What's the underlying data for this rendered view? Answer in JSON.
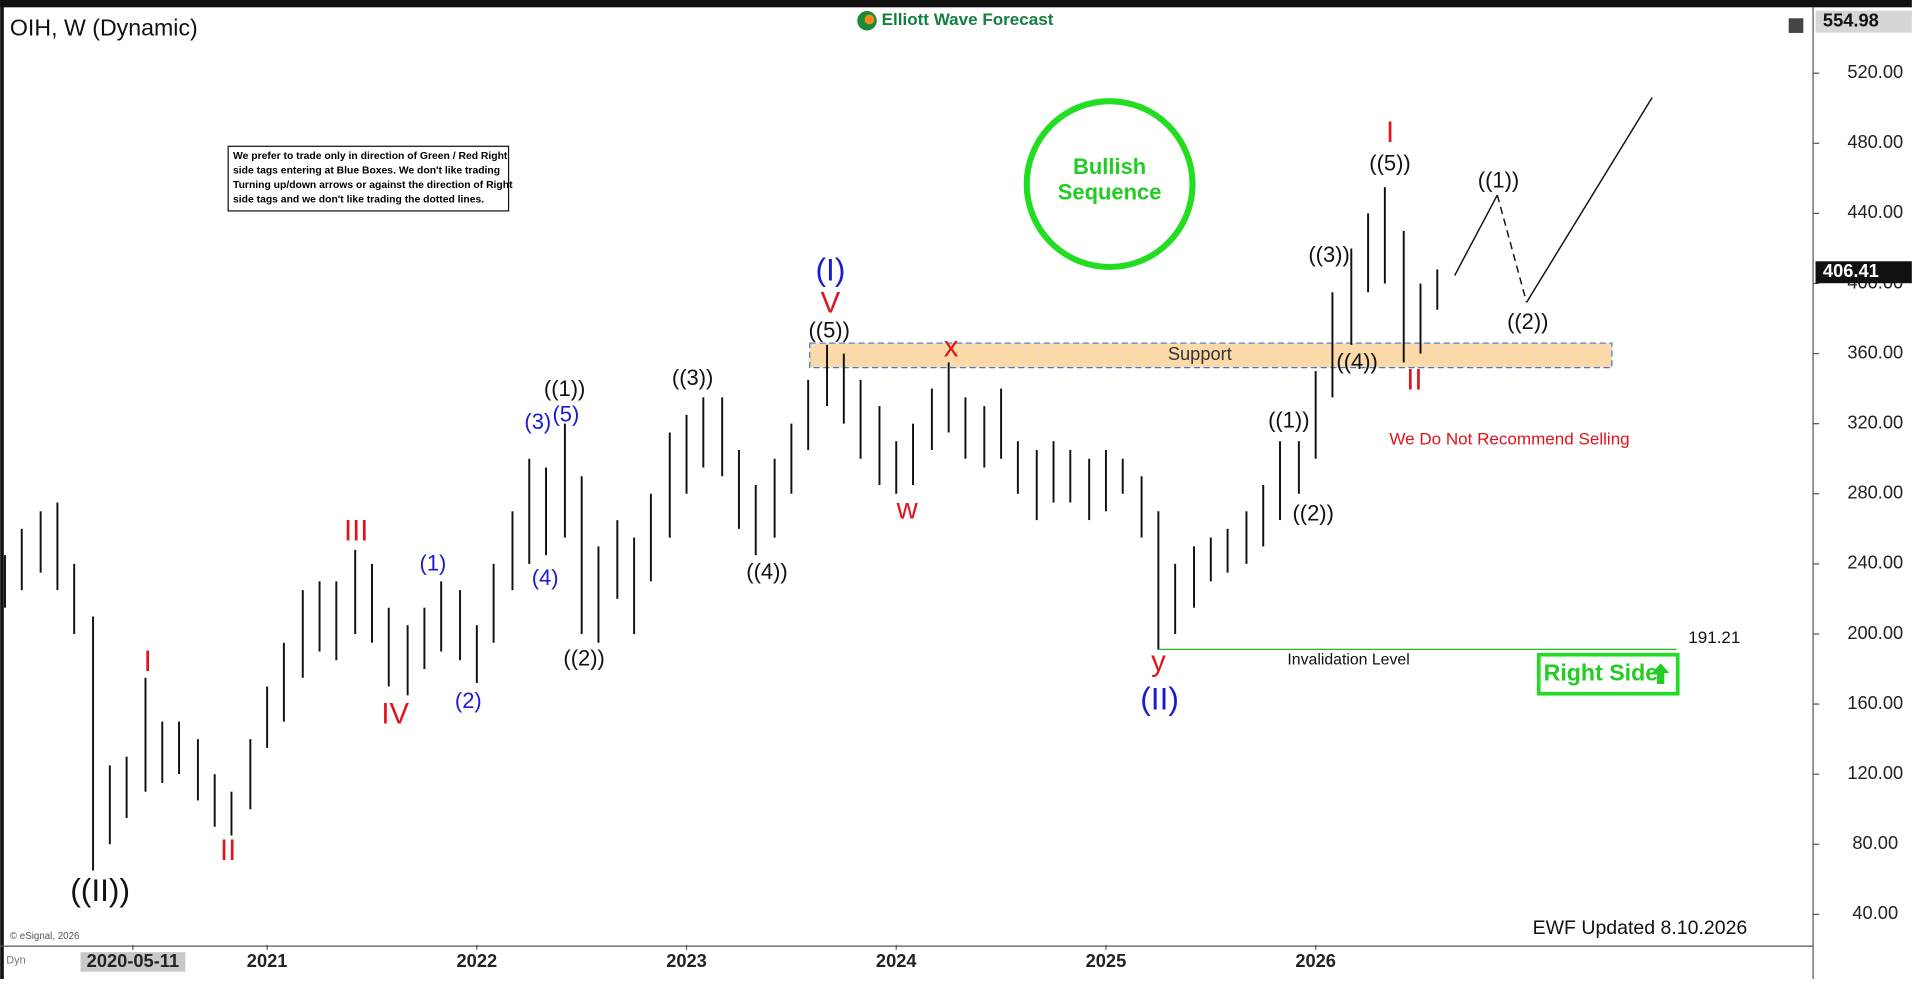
{
  "chart_data": {
    "type": "ohlc",
    "title": "OIH, W (Dynamic)",
    "brand": "Elliott Wave Forecast",
    "color": "#111111",
    "x": [
      2019.75,
      2019.83,
      2019.92,
      2020.0,
      2020.08,
      2020.17,
      2020.25,
      2020.33,
      2020.42,
      2020.5,
      2020.58,
      2020.67,
      2020.75,
      2020.83,
      2020.92,
      2021.0,
      2021.08,
      2021.17,
      2021.25,
      2021.33,
      2021.42,
      2021.5,
      2021.58,
      2021.67,
      2021.75,
      2021.83,
      2021.92,
      2022.0,
      2022.08,
      2022.17,
      2022.25,
      2022.33,
      2022.42,
      2022.5,
      2022.58,
      2022.67,
      2022.75,
      2022.83,
      2022.92,
      2023.0,
      2023.08,
      2023.17,
      2023.25,
      2023.33,
      2023.42,
      2023.5,
      2023.58,
      2023.67,
      2023.75,
      2023.83,
      2023.92,
      2024.0,
      2024.08,
      2024.17,
      2024.25,
      2024.33,
      2024.42,
      2024.5,
      2024.58,
      2024.67,
      2024.75,
      2024.83,
      2024.92,
      2025.0,
      2025.08,
      2025.17,
      2025.25,
      2025.33,
      2025.42,
      2025.5,
      2025.58,
      2025.67,
      2025.75,
      2025.83,
      2025.92,
      2026.0,
      2026.08,
      2026.17,
      2026.25,
      2026.33,
      2026.42,
      2026.5,
      2026.58
    ],
    "high": [
      245,
      260,
      270,
      275,
      240,
      210,
      125,
      130,
      175,
      150,
      150,
      140,
      120,
      110,
      140,
      170,
      195,
      225,
      230,
      230,
      248,
      240,
      215,
      205,
      215,
      230,
      225,
      205,
      240,
      270,
      300,
      295,
      320,
      290,
      250,
      265,
      255,
      280,
      315,
      325,
      335,
      335,
      305,
      285,
      300,
      320,
      345,
      365,
      360,
      345,
      330,
      310,
      320,
      340,
      355,
      335,
      330,
      340,
      310,
      305,
      310,
      305,
      300,
      305,
      300,
      290,
      270,
      240,
      250,
      255,
      260,
      270,
      285,
      310,
      310,
      350,
      395,
      420,
      440,
      455,
      430,
      400,
      408
    ],
    "low": [
      215,
      225,
      235,
      225,
      200,
      65,
      80,
      95,
      110,
      115,
      120,
      105,
      90,
      85,
      100,
      135,
      150,
      175,
      190,
      185,
      200,
      195,
      170,
      165,
      180,
      190,
      185,
      172,
      195,
      225,
      240,
      245,
      255,
      200,
      195,
      220,
      200,
      230,
      255,
      280,
      295,
      290,
      260,
      245,
      255,
      280,
      305,
      330,
      320,
      300,
      285,
      280,
      285,
      305,
      315,
      300,
      295,
      300,
      280,
      265,
      275,
      275,
      265,
      270,
      280,
      255,
      191,
      200,
      215,
      230,
      235,
      240,
      250,
      265,
      280,
      300,
      335,
      365,
      395,
      400,
      355,
      360,
      385
    ],
    "xlim": [
      2019.727,
      2028.372
    ],
    "ylim": [
      22.6,
      556.2
    ],
    "xticks": [
      {
        "value": 2020.36,
        "label": "2020-05-11"
      },
      2021,
      2022,
      2023,
      2024,
      2025,
      2026
    ],
    "yticks": [
      {
        "value": 40,
        "label": "40.00"
      },
      {
        "value": 80,
        "label": "80.00"
      },
      {
        "value": 120,
        "label": "120.00"
      },
      {
        "value": 160,
        "label": "160.00"
      },
      {
        "value": 200,
        "label": "200.00"
      },
      {
        "value": 240,
        "label": "240.00"
      },
      {
        "value": 280,
        "label": "280.00"
      },
      {
        "value": 320,
        "label": "320.00"
      },
      {
        "value": 360,
        "label": "360.00"
      },
      {
        "value": 400,
        "label": "400.00"
      },
      {
        "value": 440,
        "label": "440.00"
      },
      {
        "value": 480,
        "label": "480.00"
      },
      {
        "value": 520,
        "label": "520.00"
      }
    ],
    "price_high_marker": 554.98,
    "last_price": 406.41,
    "support_zone": [
      352,
      366
    ],
    "support_label": "Support",
    "invalidation_level": 191.21,
    "invalidation_label": "Invalidation Level",
    "wave_labels": [
      "((II))",
      "I",
      "II",
      "III",
      "IV",
      "(1)",
      "(2)",
      "(3)",
      "(4)",
      "(5)",
      "((1))",
      "((2))",
      "((3))",
      "((4))",
      "(I)",
      "V",
      "((5))",
      "x",
      "w",
      "y",
      "(II)",
      "((1))",
      "((2))",
      "((3))",
      "((4))",
      "((5))",
      "I",
      "II",
      "((1))",
      "((2))"
    ],
    "note": [
      "We prefer to trade only in direction of Green / Red Right",
      "side tags entering at Blue Boxes. We don't like trading",
      "Turning up/down arrows or against the direction of Right",
      "side tags and we don't like trading the dotted lines."
    ],
    "sequence_badge": [
      "Bullish",
      "Sequence"
    ],
    "warning": "We Do Not Recommend Selling",
    "right_side": "Right Side",
    "updated": "EWF Updated 8.10.2026",
    "copyright": "© eSignal, 2026",
    "mode": "Dyn"
  }
}
